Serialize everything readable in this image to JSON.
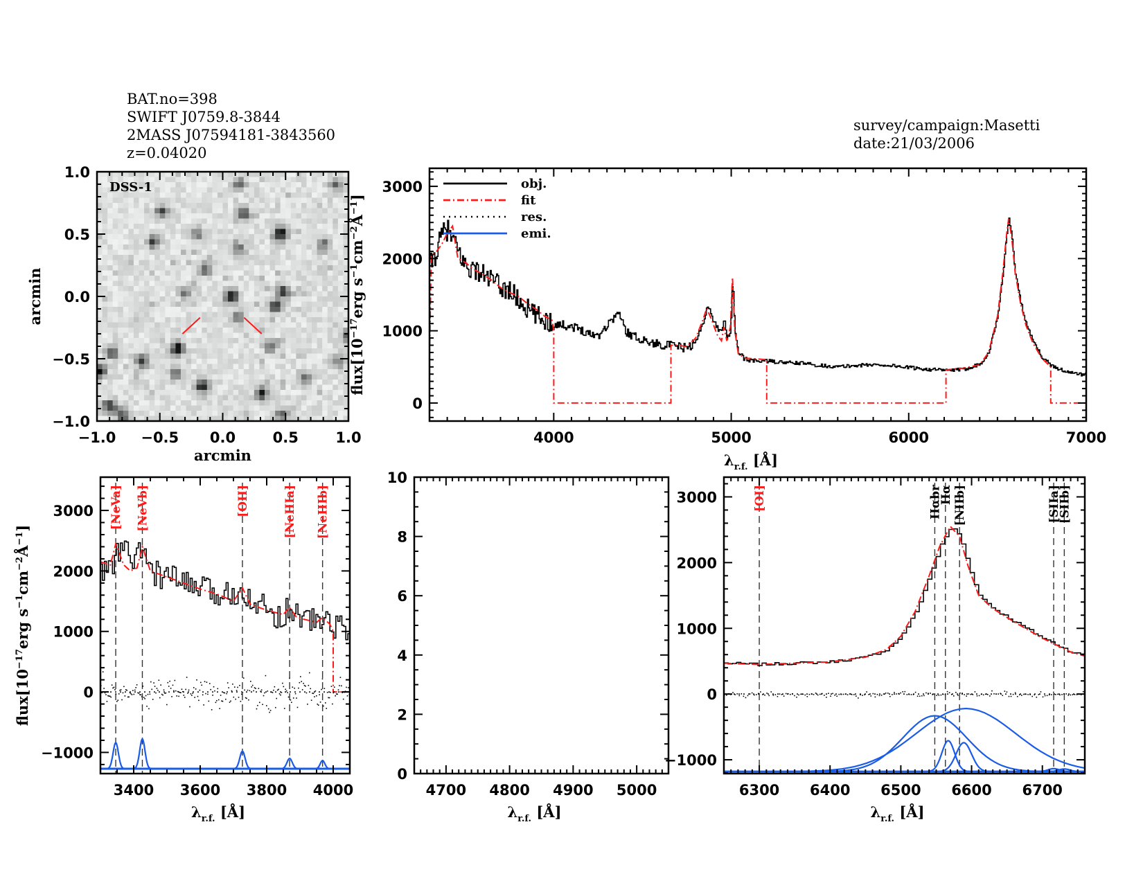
{
  "header": {
    "left_lines": [
      "BAT.no=398",
      "SWIFT J0759.8-3844",
      "2MASS J07594181-3843560",
      "z=0.04020"
    ],
    "right_lines": [
      "survey/campaign:Masetti",
      "date:21/03/2006"
    ]
  },
  "colors": {
    "obj": "#000000",
    "fit": "#ff1a1a",
    "res": "#000000",
    "emi": "#1a5ce6",
    "line_marker": "#333333",
    "line_label_red": "#ff1a1a",
    "line_label_black": "#000000"
  },
  "chart_data": [
    {
      "id": "image",
      "type": "heatmap",
      "title": "DSS-1",
      "xlabel": "arcmin",
      "ylabel": "arcmin",
      "xlim": [
        -1.0,
        1.0
      ],
      "ylim": [
        -1.0,
        1.0
      ],
      "xticks": [
        "-1.0",
        "-0.5",
        "0.0",
        "0.5",
        "1.0"
      ],
      "yticks": [
        "-1.0",
        "-0.5",
        "0.0",
        "0.5",
        "1.0"
      ],
      "bright_sources": [
        {
          "x": 0.07,
          "y": 0.0,
          "intensity": 1.0
        },
        {
          "x": 0.46,
          "y": 0.5,
          "intensity": 1.0
        },
        {
          "x": -0.36,
          "y": -0.42,
          "intensity": 1.0
        },
        {
          "x": -0.16,
          "y": -0.72,
          "intensity": 0.95
        },
        {
          "x": -0.98,
          "y": -0.6,
          "intensity": 1.0
        },
        {
          "x": 0.31,
          "y": -0.78,
          "intensity": 0.85
        },
        {
          "x": 0.42,
          "y": -0.08,
          "intensity": 0.8
        },
        {
          "x": 0.48,
          "y": 0.04,
          "intensity": 0.75
        },
        {
          "x": -0.55,
          "y": 0.44,
          "intensity": 0.7
        },
        {
          "x": -0.48,
          "y": 0.68,
          "intensity": 0.7
        },
        {
          "x": 0.17,
          "y": 0.66,
          "intensity": 0.65
        },
        {
          "x": -0.14,
          "y": 0.22,
          "intensity": 0.6
        },
        {
          "x": -0.9,
          "y": -0.88,
          "intensity": 0.75
        },
        {
          "x": -0.8,
          "y": -0.95,
          "intensity": 0.7
        },
        {
          "x": 0.12,
          "y": -0.17,
          "intensity": 0.55
        },
        {
          "x": -0.64,
          "y": -0.52,
          "intensity": 0.7
        },
        {
          "x": -0.88,
          "y": -0.45,
          "intensity": 0.65
        },
        {
          "x": 0.47,
          "y": -0.95,
          "intensity": 0.6
        },
        {
          "x": 1.0,
          "y": -0.32,
          "intensity": 0.7
        },
        {
          "x": 0.38,
          "y": -0.4,
          "intensity": 0.55
        },
        {
          "x": 0.8,
          "y": 0.42,
          "intensity": 0.55
        },
        {
          "x": -0.37,
          "y": -0.62,
          "intensity": 0.55
        },
        {
          "x": -0.2,
          "y": 0.5,
          "intensity": 0.5
        },
        {
          "x": 0.13,
          "y": 0.38,
          "intensity": 0.5
        },
        {
          "x": 0.9,
          "y": 0.9,
          "intensity": 0.55
        },
        {
          "x": 0.13,
          "y": 0.9,
          "intensity": 0.55
        },
        {
          "x": 0.65,
          "y": -0.65,
          "intensity": 0.5
        },
        {
          "x": -0.3,
          "y": 0.03,
          "intensity": 0.5
        },
        {
          "x": 0.92,
          "y": -0.52,
          "intensity": 0.45
        }
      ],
      "markers": [
        {
          "x1": -0.32,
          "y1": -0.3,
          "x2": -0.18,
          "y2": -0.17
        },
        {
          "x1": 0.17,
          "y1": -0.17,
          "x2": 0.31,
          "y2": -0.3
        }
      ]
    },
    {
      "id": "full",
      "type": "line",
      "xlabel": "λr.f. [Å]",
      "ylabel": "flux[10^-17 erg s^-1 cm^-2 Å^-1]",
      "xlim": [
        3300,
        7000
      ],
      "ylim": [
        -250,
        3250
      ],
      "xticks": [
        4000,
        5000,
        6000,
        7000
      ],
      "yticks": [
        0,
        1000,
        2000,
        3000
      ],
      "legend": {
        "placement": "top-left",
        "entries": [
          "obj.",
          "fit",
          "res.",
          "emi."
        ]
      },
      "obj_nodes": [
        [
          3300,
          1900
        ],
        [
          3340,
          2100
        ],
        [
          3370,
          2350
        ],
        [
          3400,
          2400
        ],
        [
          3430,
          2250
        ],
        [
          3470,
          2050
        ],
        [
          3500,
          1900
        ],
        [
          3550,
          1850
        ],
        [
          3600,
          1780
        ],
        [
          3650,
          1700
        ],
        [
          3700,
          1600
        ],
        [
          3750,
          1560
        ],
        [
          3800,
          1420
        ],
        [
          3850,
          1300
        ],
        [
          3900,
          1200
        ],
        [
          3950,
          1150
        ],
        [
          4000,
          1100
        ],
        [
          4050,
          1080
        ],
        [
          4100,
          1060
        ],
        [
          4150,
          1020
        ],
        [
          4200,
          960
        ],
        [
          4250,
          940
        ],
        [
          4300,
          1080
        ],
        [
          4340,
          1200
        ],
        [
          4370,
          1240
        ],
        [
          4400,
          1000
        ],
        [
          4450,
          920
        ],
        [
          4500,
          880
        ],
        [
          4550,
          830
        ],
        [
          4600,
          810
        ],
        [
          4650,
          800
        ],
        [
          4700,
          780
        ],
        [
          4750,
          760
        ],
        [
          4800,
          850
        ],
        [
          4840,
          1120
        ],
        [
          4862,
          1330
        ],
        [
          4880,
          1260
        ],
        [
          4910,
          1080
        ],
        [
          4940,
          980
        ],
        [
          4959,
          1170
        ],
        [
          4975,
          900
        ],
        [
          4995,
          1000
        ],
        [
          5007,
          1770
        ],
        [
          5020,
          950
        ],
        [
          5040,
          700
        ],
        [
          5070,
          620
        ],
        [
          5100,
          590
        ],
        [
          5200,
          580
        ],
        [
          5300,
          560
        ],
        [
          5400,
          550
        ],
        [
          5500,
          520
        ],
        [
          5600,
          500
        ],
        [
          5700,
          520
        ],
        [
          5800,
          530
        ],
        [
          5900,
          520
        ],
        [
          6000,
          490
        ],
        [
          6100,
          470
        ],
        [
          6200,
          450
        ],
        [
          6300,
          460
        ],
        [
          6400,
          540
        ],
        [
          6450,
          700
        ],
        [
          6500,
          1200
        ],
        [
          6530,
          1800
        ],
        [
          6550,
          2300
        ],
        [
          6563,
          2580
        ],
        [
          6580,
          2300
        ],
        [
          6600,
          1800
        ],
        [
          6630,
          1400
        ],
        [
          6660,
          1100
        ],
        [
          6700,
          850
        ],
        [
          6750,
          640
        ],
        [
          6800,
          520
        ],
        [
          6850,
          470
        ],
        [
          6900,
          420
        ],
        [
          6950,
          400
        ],
        [
          7000,
          400
        ]
      ],
      "obj_noise": [
        [
          3300,
          4000,
          150
        ],
        [
          4000,
          4800,
          60
        ],
        [
          4800,
          5100,
          40
        ],
        [
          5100,
          7000,
          25
        ]
      ],
      "fit_nodes": [
        [
          3300,
          600
        ],
        [
          3310,
          2050
        ],
        [
          3340,
          2100
        ],
        [
          3370,
          2200
        ],
        [
          3400,
          2350
        ],
        [
          3430,
          2450
        ],
        [
          3460,
          2000
        ],
        [
          3500,
          1950
        ],
        [
          3550,
          1850
        ],
        [
          3600,
          1780
        ],
        [
          3650,
          1700
        ],
        [
          3700,
          1600
        ],
        [
          3750,
          1530
        ],
        [
          3800,
          1480
        ],
        [
          3850,
          1380
        ],
        [
          3900,
          1300
        ],
        [
          3950,
          1200
        ],
        [
          3990,
          1150
        ],
        [
          4000,
          1000
        ],
        [
          4000,
          0
        ],
        [
          4660,
          0
        ],
        [
          4660,
          800
        ],
        [
          4700,
          800
        ],
        [
          4750,
          780
        ],
        [
          4800,
          900
        ],
        [
          4840,
          1150
        ],
        [
          4862,
          1310
        ],
        [
          4890,
          1150
        ],
        [
          4920,
          950
        ],
        [
          4945,
          860
        ],
        [
          4959,
          1050
        ],
        [
          4975,
          860
        ],
        [
          4995,
          1050
        ],
        [
          5007,
          1740
        ],
        [
          5020,
          1000
        ],
        [
          5040,
          680
        ],
        [
          5080,
          620
        ],
        [
          5150,
          610
        ],
        [
          5200,
          600
        ],
        [
          5200,
          0
        ],
        [
          6210,
          0
        ],
        [
          6210,
          460
        ],
        [
          6300,
          480
        ],
        [
          6400,
          530
        ],
        [
          6450,
          700
        ],
        [
          6500,
          1200
        ],
        [
          6530,
          1800
        ],
        [
          6550,
          2300
        ],
        [
          6563,
          2550
        ],
        [
          6580,
          2300
        ],
        [
          6600,
          1800
        ],
        [
          6630,
          1380
        ],
        [
          6660,
          1080
        ],
        [
          6700,
          830
        ],
        [
          6750,
          620
        ],
        [
          6800,
          500
        ],
        [
          6800,
          0
        ],
        [
          7000,
          0
        ]
      ]
    },
    {
      "id": "zoom-blue",
      "type": "line",
      "xlabel": "λr.f. [Å]",
      "ylabel": "flux[10^-17 erg s^-1 cm^-2 Å^-1]",
      "xlim": [
        3300,
        4050
      ],
      "ylim": [
        -1350,
        3550
      ],
      "xticks": [
        3400,
        3600,
        3800,
        4000
      ],
      "yticks": [
        -1000,
        0,
        1000,
        2000,
        3000
      ],
      "lines": [
        {
          "name": "[NeVa]",
          "wavelength": 3346,
          "color": "red"
        },
        {
          "name": "[NeVb]",
          "wavelength": 3426,
          "color": "red"
        },
        {
          "name": "[OII]",
          "wavelength": 3727,
          "color": "red"
        },
        {
          "name": "[NeIIIa]",
          "wavelength": 3869,
          "color": "red"
        },
        {
          "name": "[NeIIIb]",
          "wavelength": 3968,
          "color": "red"
        }
      ],
      "obj_nodes": [
        [
          3300,
          1950
        ],
        [
          3320,
          2050
        ],
        [
          3340,
          2150
        ],
        [
          3360,
          2400
        ],
        [
          3380,
          2300
        ],
        [
          3400,
          2150
        ],
        [
          3420,
          2300
        ],
        [
          3440,
          2200
        ],
        [
          3460,
          1950
        ],
        [
          3500,
          1900
        ],
        [
          3550,
          1800
        ],
        [
          3600,
          1700
        ],
        [
          3650,
          1600
        ],
        [
          3700,
          1650
        ],
        [
          3727,
          1700
        ],
        [
          3760,
          1500
        ],
        [
          3800,
          1350
        ],
        [
          3840,
          1250
        ],
        [
          3869,
          1400
        ],
        [
          3900,
          1250
        ],
        [
          3950,
          1150
        ],
        [
          3968,
          1200
        ],
        [
          4000,
          1100
        ],
        [
          4050,
          1050
        ]
      ],
      "obj_noise_amplitude": 220,
      "fit_nodes": [
        [
          3300,
          2150
        ],
        [
          3330,
          2100
        ],
        [
          3346,
          2450
        ],
        [
          3370,
          2100
        ],
        [
          3390,
          2000
        ],
        [
          3410,
          2050
        ],
        [
          3426,
          2400
        ],
        [
          3450,
          2000
        ],
        [
          3500,
          1900
        ],
        [
          3550,
          1800
        ],
        [
          3600,
          1700
        ],
        [
          3650,
          1620
        ],
        [
          3700,
          1500
        ],
        [
          3727,
          1720
        ],
        [
          3750,
          1450
        ],
        [
          3800,
          1350
        ],
        [
          3850,
          1280
        ],
        [
          3869,
          1400
        ],
        [
          3890,
          1230
        ],
        [
          3950,
          1150
        ],
        [
          3968,
          1230
        ],
        [
          3990,
          1120
        ],
        [
          4000,
          1000
        ],
        [
          4000,
          0
        ],
        [
          4050,
          0
        ]
      ],
      "residual_scatter": 350,
      "emission_baseline": -1270,
      "emission": [
        {
          "center": 3346,
          "amplitude": 430,
          "sigma": 8
        },
        {
          "center": 3426,
          "amplitude": 490,
          "sigma": 8
        },
        {
          "center": 3727,
          "amplitude": 290,
          "sigma": 8
        },
        {
          "center": 3869,
          "amplitude": 170,
          "sigma": 8
        },
        {
          "center": 3968,
          "amplitude": 135,
          "sigma": 7
        }
      ]
    },
    {
      "id": "zoom-green",
      "type": "line",
      "xlabel": "λr.f. [Å]",
      "ylabel": "",
      "xlim": [
        4650,
        5050
      ],
      "ylim": [
        0,
        10
      ],
      "xticks": [
        4700,
        4800,
        4900,
        5000
      ],
      "yticks": [
        0,
        2,
        4,
        6,
        8,
        10
      ],
      "empty": true
    },
    {
      "id": "zoom-red",
      "type": "line",
      "xlabel": "λr.f. [Å]",
      "ylabel": "",
      "xlim": [
        6250,
        6760
      ],
      "ylim": [
        -1210,
        3300
      ],
      "xticks": [
        6300,
        6400,
        6500,
        6600,
        6700
      ],
      "yticks": [
        -1000,
        0,
        1000,
        2000,
        3000
      ],
      "lines": [
        {
          "name": "[OI]",
          "wavelength": 6300,
          "color": "red"
        },
        {
          "name": "Hαbr",
          "wavelength": 6548,
          "color": "black"
        },
        {
          "name": "Hα",
          "wavelength": 6563,
          "color": "black"
        },
        {
          "name": "[NIIb]",
          "wavelength": 6583,
          "color": "black"
        },
        {
          "name": "[SIIa]",
          "wavelength": 6716,
          "color": "black"
        },
        {
          "name": "[SIIb]",
          "wavelength": 6731,
          "color": "black"
        }
      ],
      "obj_nodes": [
        [
          6250,
          470
        ],
        [
          6300,
          450
        ],
        [
          6350,
          470
        ],
        [
          6400,
          490
        ],
        [
          6450,
          560
        ],
        [
          6480,
          680
        ],
        [
          6500,
          880
        ],
        [
          6520,
          1250
        ],
        [
          6540,
          1800
        ],
        [
          6555,
          2250
        ],
        [
          6570,
          2550
        ],
        [
          6583,
          2400
        ],
        [
          6595,
          1950
        ],
        [
          6610,
          1500
        ],
        [
          6630,
          1300
        ],
        [
          6660,
          1100
        ],
        [
          6700,
          850
        ],
        [
          6740,
          640
        ],
        [
          6760,
          580
        ]
      ],
      "residual_scatter": 60,
      "emission_baseline": -1180,
      "emission": [
        {
          "center": 6548,
          "amplitude": 850,
          "sigma": 45
        },
        {
          "center": 6592,
          "amplitude": 960,
          "sigma": 70
        },
        {
          "center": 6567,
          "amplitude": 470,
          "sigma": 9
        },
        {
          "center": 6589,
          "amplitude": 440,
          "sigma": 11
        },
        {
          "center": 6716,
          "amplitude": 45,
          "sigma": 8
        },
        {
          "center": 6731,
          "amplitude": 40,
          "sigma": 8
        }
      ]
    }
  ]
}
